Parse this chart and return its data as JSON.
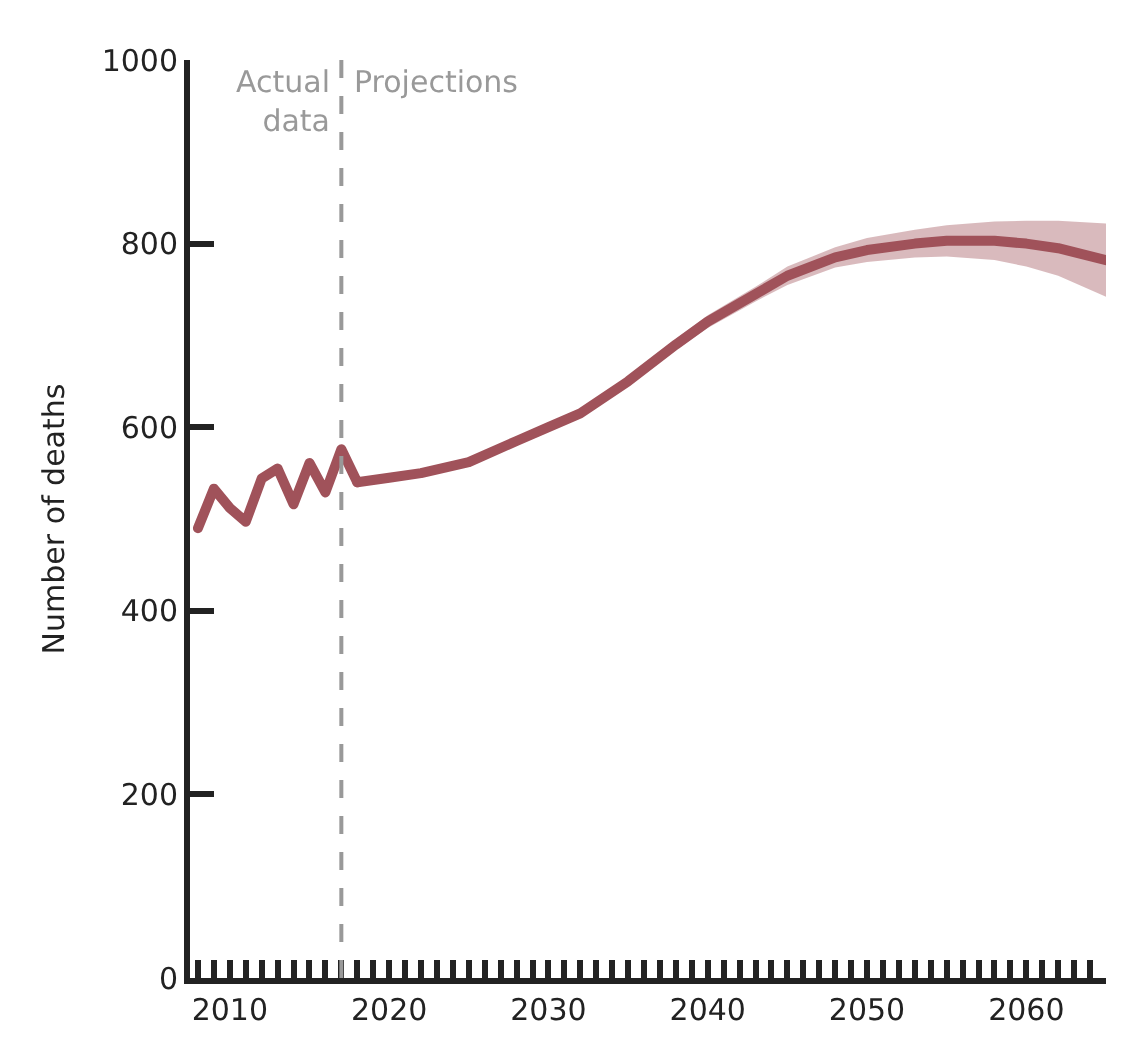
{
  "chart_data": {
    "type": "line",
    "ylabel": "Number of deaths",
    "series": [
      {
        "color": "#a0525a",
        "x": [
          2008,
          2009,
          2010,
          2011,
          2012,
          2013,
          2014,
          2015,
          2016,
          2017,
          2018
        ],
        "values": [
          490,
          533,
          512,
          497,
          544,
          555,
          516,
          561,
          529,
          576,
          540
        ]
      },
      {
        "color": "#a0525a",
        "x": [
          2018,
          2020,
          2022,
          2025,
          2028,
          2030,
          2032,
          2035,
          2038,
          2040,
          2043,
          2045,
          2048,
          2050,
          2053,
          2055,
          2058,
          2060,
          2062,
          2065
        ],
        "values": [
          540,
          545,
          550,
          562,
          585,
          600,
          615,
          650,
          690,
          715,
          745,
          765,
          785,
          793,
          800,
          803,
          803,
          800,
          795,
          782
        ],
        "lower": [
          540,
          544,
          548,
          559,
          582,
          597,
          611,
          645,
          684,
          708,
          737,
          755,
          774,
          780,
          785,
          786,
          782,
          775,
          765,
          742
        ],
        "upper": [
          540,
          546,
          552,
          565,
          588,
          603,
          619,
          655,
          696,
          722,
          753,
          775,
          796,
          806,
          815,
          820,
          824,
          825,
          825,
          822
        ]
      }
    ],
    "xlim": [
      2007.5,
      2065
    ],
    "ylim": [
      0,
      1000
    ],
    "xticks": [
      {
        "value": 2008,
        "label": null
      },
      {
        "value": 2009,
        "label": null
      },
      2010,
      {
        "value": 2011,
        "label": null
      },
      {
        "value": 2012,
        "label": null
      },
      {
        "value": 2013,
        "label": null
      },
      {
        "value": 2014,
        "label": null
      },
      {
        "value": 2015,
        "label": null
      },
      {
        "value": 2016,
        "label": null
      },
      {
        "value": 2017,
        "label": null
      },
      {
        "value": 2018,
        "label": null
      },
      {
        "value": 2019,
        "label": null
      },
      2020,
      {
        "value": 2021,
        "label": null
      },
      {
        "value": 2022,
        "label": null
      },
      {
        "value": 2023,
        "label": null
      },
      {
        "value": 2024,
        "label": null
      },
      {
        "value": 2025,
        "label": null
      },
      {
        "value": 2026,
        "label": null
      },
      {
        "value": 2027,
        "label": null
      },
      {
        "value": 2028,
        "label": null
      },
      {
        "value": 2029,
        "label": null
      },
      2030,
      {
        "value": 2031,
        "label": null
      },
      {
        "value": 2032,
        "label": null
      },
      {
        "value": 2033,
        "label": null
      },
      {
        "value": 2034,
        "label": null
      },
      {
        "value": 2035,
        "label": null
      },
      {
        "value": 2036,
        "label": null
      },
      {
        "value": 2037,
        "label": null
      },
      {
        "value": 2038,
        "label": null
      },
      {
        "value": 2039,
        "label": null
      },
      2040,
      {
        "value": 2041,
        "label": null
      },
      {
        "value": 2042,
        "label": null
      },
      {
        "value": 2043,
        "label": null
      },
      {
        "value": 2044,
        "label": null
      },
      {
        "value": 2045,
        "label": null
      },
      {
        "value": 2046,
        "label": null
      },
      {
        "value": 2047,
        "label": null
      },
      {
        "value": 2048,
        "label": null
      },
      {
        "value": 2049,
        "label": null
      },
      2050,
      {
        "value": 2051,
        "label": null
      },
      {
        "value": 2052,
        "label": null
      },
      {
        "value": 2053,
        "label": null
      },
      {
        "value": 2054,
        "label": null
      },
      {
        "value": 2055,
        "label": null
      },
      {
        "value": 2056,
        "label": null
      },
      {
        "value": 2057,
        "label": null
      },
      {
        "value": 2058,
        "label": null
      },
      {
        "value": 2059,
        "label": null
      },
      2060,
      {
        "value": 2061,
        "label": null
      },
      {
        "value": 2062,
        "label": null
      },
      {
        "value": 2063,
        "label": null
      },
      {
        "value": 2064,
        "label": null
      }
    ],
    "yticks": [
      0,
      200,
      400,
      600,
      800,
      1000
    ],
    "ref_lines": [
      {
        "axis": "x",
        "value": 2017,
        "color": "#999999",
        "line_style": "dashed"
      }
    ],
    "annotations": [
      "Actual\ndata",
      "Projections"
    ],
    "marker": "none",
    "line_style": "solid"
  }
}
